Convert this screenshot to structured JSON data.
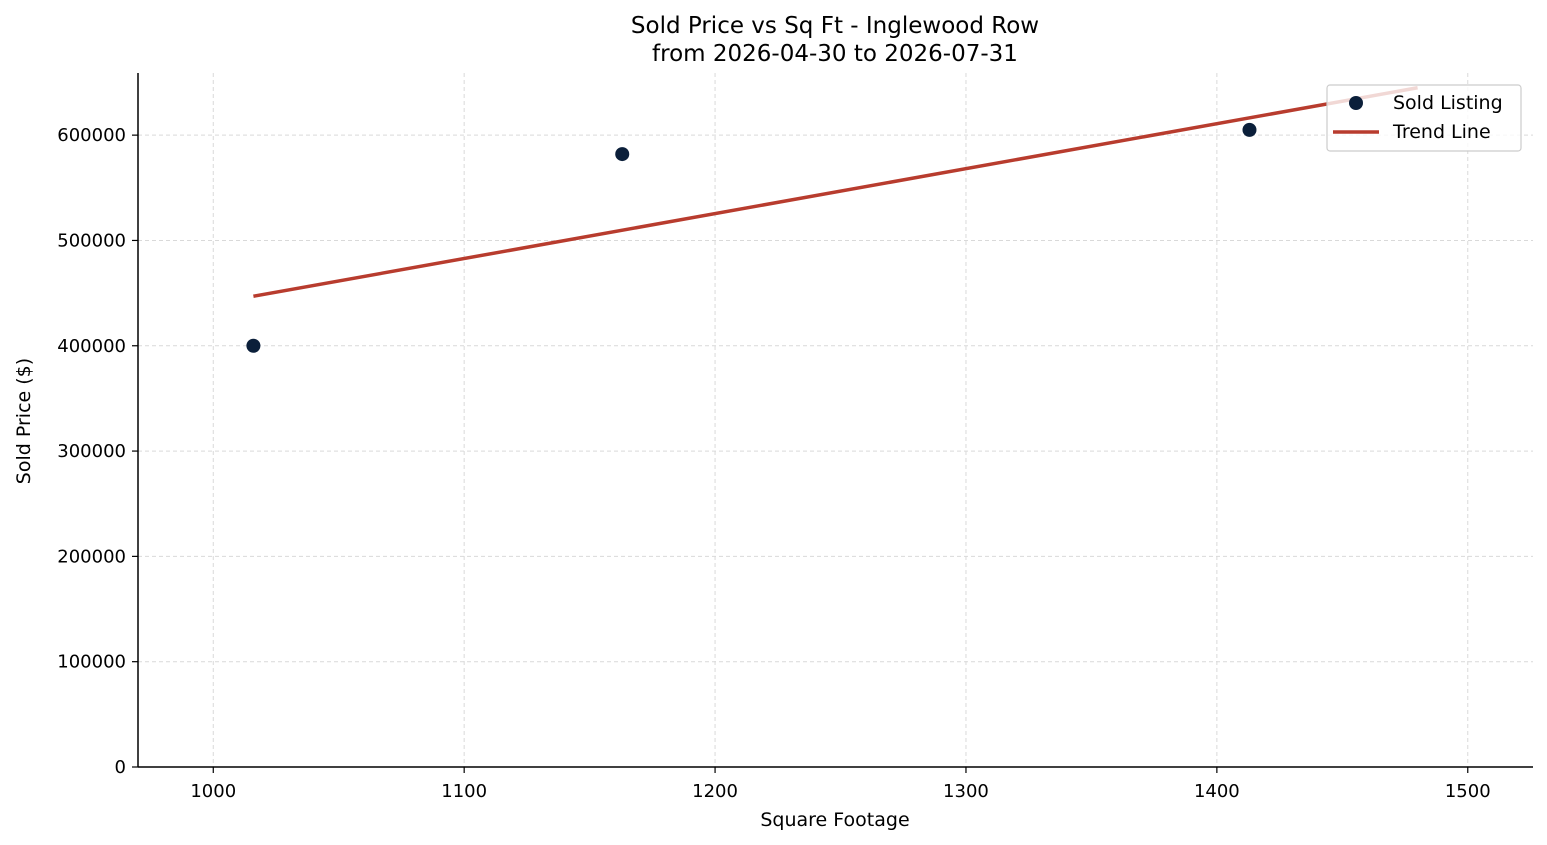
{
  "chart_data": {
    "type": "scatter",
    "title": "Sold Price vs Sq Ft - Inglewood Row",
    "subtitle": "from 2026-04-30 to 2026-07-31",
    "xlabel": "Square Footage",
    "ylabel": "Sold Price ($)",
    "xlim": [
      970,
      1526
    ],
    "ylim": [
      0,
      659000
    ],
    "x_ticks": [
      1000,
      1100,
      1200,
      1300,
      1400,
      1500
    ],
    "y_ticks": [
      0,
      100000,
      200000,
      300000,
      400000,
      500000,
      600000
    ],
    "grid": true,
    "legend_position": "top-right",
    "series": [
      {
        "name": "Sold Listing",
        "kind": "scatter",
        "color": "#0b1f3a",
        "points": [
          {
            "x": 1016,
            "y": 400000
          },
          {
            "x": 1163,
            "y": 582000
          },
          {
            "x": 1413,
            "y": 605000
          }
        ]
      },
      {
        "name": "Trend Line",
        "kind": "line",
        "color": "#b83c2e",
        "points": [
          {
            "x": 1016,
            "y": 447000
          },
          {
            "x": 1480,
            "y": 645000
          }
        ]
      }
    ]
  }
}
